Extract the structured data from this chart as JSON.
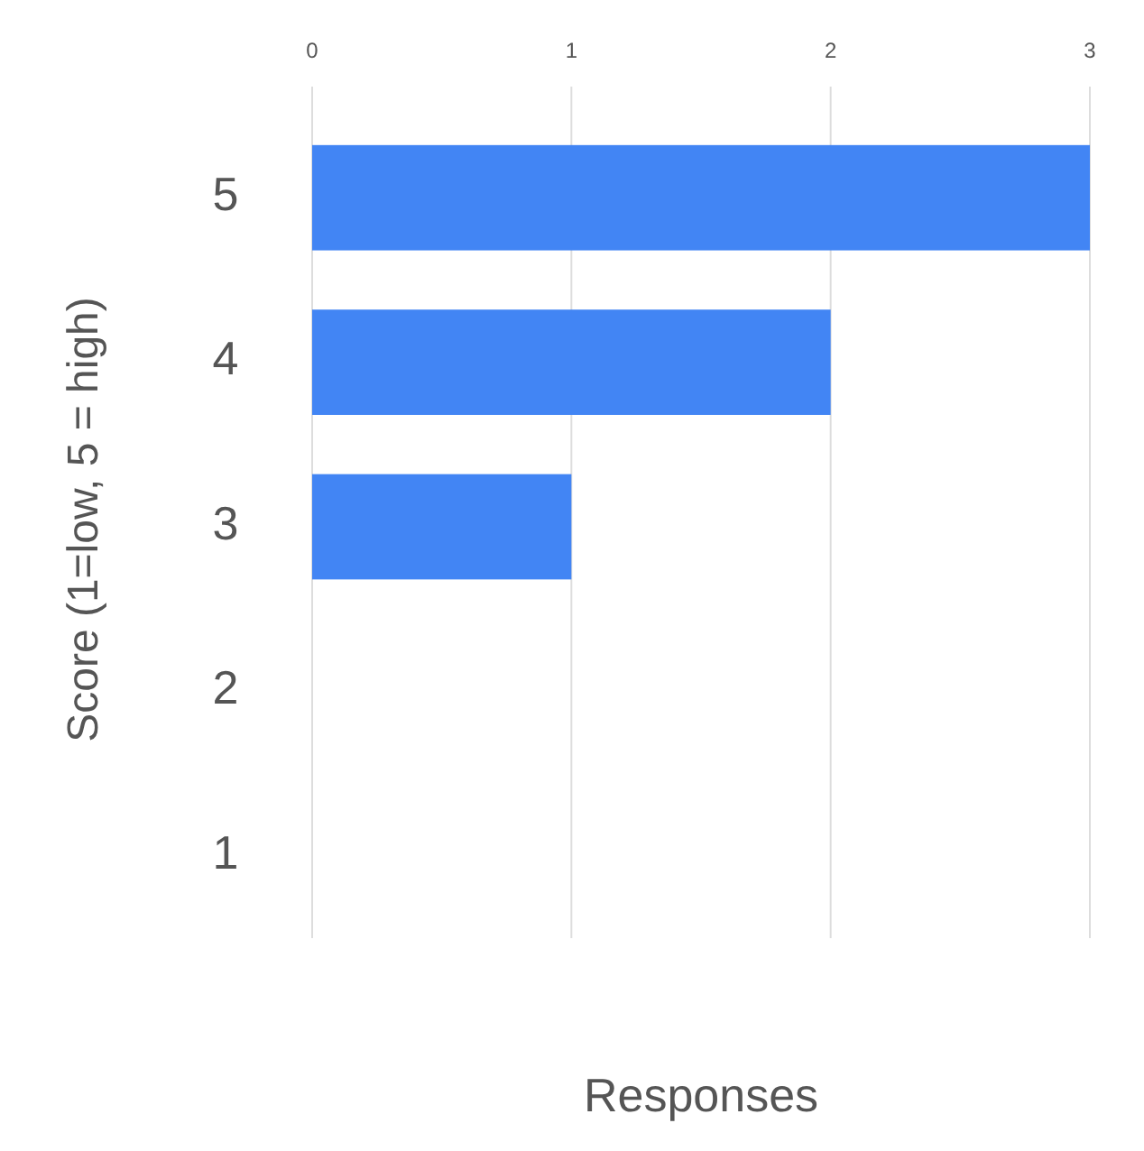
{
  "chart_data": {
    "type": "bar",
    "orientation": "horizontal",
    "categories": [
      "5",
      "4",
      "3",
      "2",
      "1"
    ],
    "values": [
      3,
      2,
      1,
      0,
      0
    ],
    "color": "#4285f4",
    "xlim": [
      0,
      3
    ],
    "xticks": [
      0,
      1,
      2,
      3
    ],
    "grid": "x",
    "xlabel": "Responses",
    "ylabel": "Score (1=low, 5 = high)"
  }
}
